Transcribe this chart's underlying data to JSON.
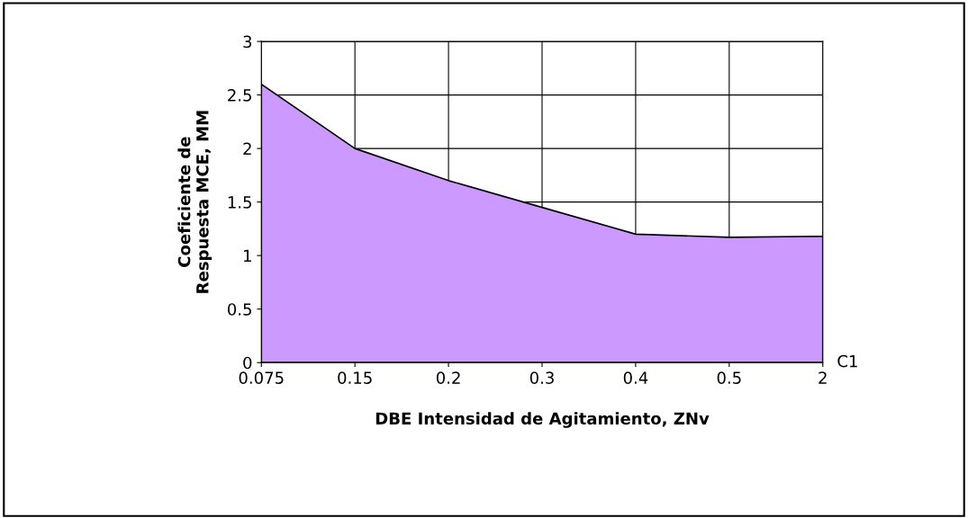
{
  "chart_data": {
    "type": "area",
    "xlabel": "DBE Intensidad de Agitamiento, ZNv",
    "ylabel": "Coeficiente de\nRespuesta MCE, MM",
    "categories": [
      "0.075",
      "0.15",
      "0.2",
      "0.3",
      "0.4",
      "0.5",
      "2"
    ],
    "series": [
      {
        "name": "C1",
        "color": "#cc99ff",
        "values": [
          2.6,
          2.0,
          1.7,
          1.45,
          1.2,
          1.17,
          1.18
        ]
      }
    ],
    "ylim": [
      0,
      3
    ],
    "yticks": [
      0,
      0.5,
      1,
      1.5,
      2,
      2.5,
      3
    ],
    "grid": true,
    "legend": false
  }
}
